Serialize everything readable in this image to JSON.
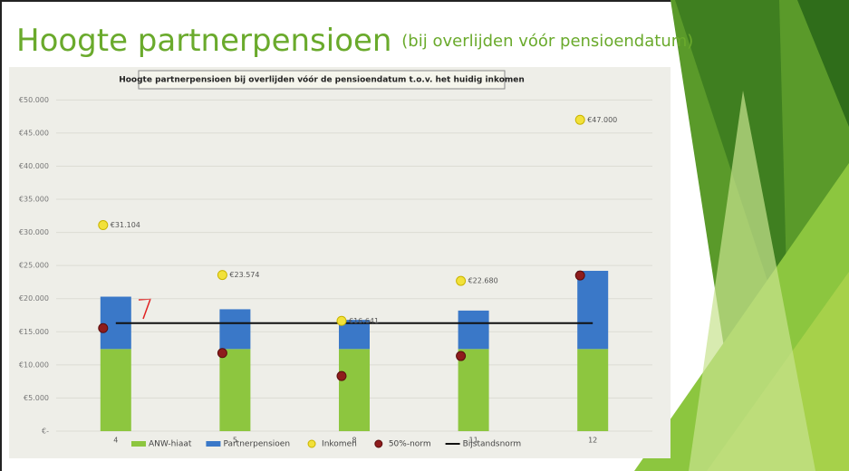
{
  "title": "Hoogte partnerpensioen",
  "subtitle": "(bij overlijden vóór pensioendatum)",
  "chart_data": {
    "type": "bar",
    "stacked": true,
    "title": "Hoogte partnerpensioen bij overlijden vóór de pensioendatum t.o.v. het huidig inkomen",
    "categories": [
      "4",
      "5",
      "8",
      "11",
      "12"
    ],
    "series": [
      {
        "name": "ANW-hiaat",
        "type": "bar",
        "color": "#8dc63f",
        "values": [
          12400,
          12400,
          12400,
          12400,
          12400
        ]
      },
      {
        "name": "Partnerpensioen",
        "type": "bar",
        "color": "#3a78c8",
        "values": [
          7900,
          6000,
          4400,
          5800,
          11800
        ]
      },
      {
        "name": "Inkomen",
        "type": "scatter",
        "color": "#f2e13a",
        "values": [
          31104,
          23574,
          16641,
          22680,
          47000
        ],
        "value_labels": [
          "€31.104",
          "€23.574",
          "€16.641",
          "€22.680",
          "€47.000"
        ]
      },
      {
        "name": "50%-norm",
        "type": "scatter",
        "color": "#8e1c1c",
        "values": [
          15552,
          11787,
          8320,
          11340,
          23500
        ]
      },
      {
        "name": "Bijstandsnorm",
        "type": "line",
        "color": "#111111",
        "values": [
          16300,
          16300,
          16300,
          16300,
          16300
        ]
      }
    ],
    "ylim": [
      0,
      51000
    ],
    "yticks": [
      {
        "value": 0,
        "label": "€-"
      },
      {
        "value": 5000,
        "label": "€5.000"
      },
      {
        "value": 10000,
        "label": "€10.000"
      },
      {
        "value": 15000,
        "label": "€15.000"
      },
      {
        "value": 20000,
        "label": "€20.000"
      },
      {
        "value": 25000,
        "label": "€25.000"
      },
      {
        "value": 30000,
        "label": "€30.000"
      },
      {
        "value": 35000,
        "label": "€35.000"
      },
      {
        "value": 40000,
        "label": "€40.000"
      },
      {
        "value": 45000,
        "label": "€45.000"
      },
      {
        "value": 50000,
        "label": "€50.000"
      }
    ],
    "grid": true
  }
}
